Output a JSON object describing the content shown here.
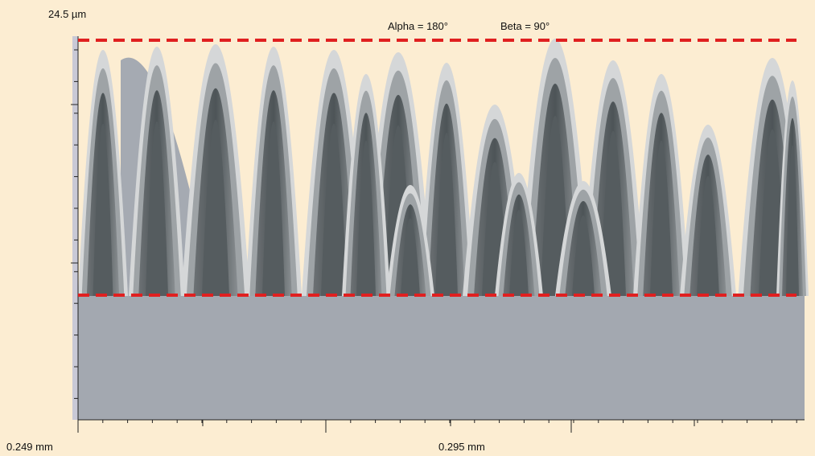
{
  "header": {
    "z_max": "24.5 µm",
    "alpha": "Alpha = 180°",
    "beta": "Beta = 90°"
  },
  "x_axis": {
    "start": "0.249 mm",
    "middle": "0.295 mm"
  }
}
